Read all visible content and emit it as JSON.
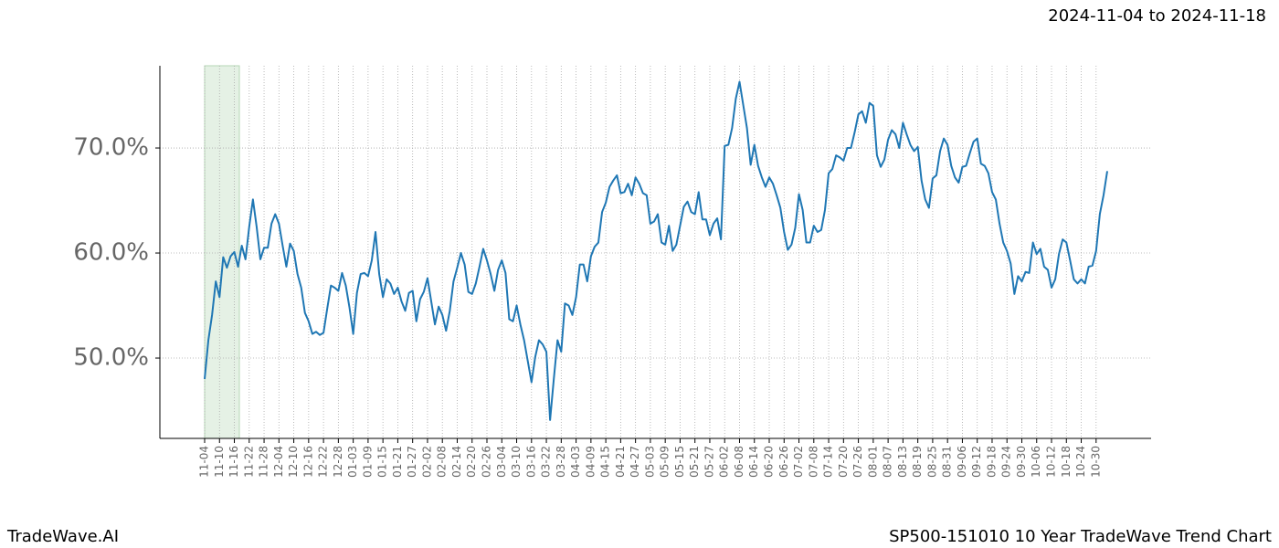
{
  "chart_data": {
    "type": "line",
    "title": "2024-11-04 to 2024-11-18",
    "footer_left": "TradeWave.AI",
    "footer_right": "SP500-151010 10 Year TradeWave Trend Chart",
    "color": "#1f77b4",
    "grid": true,
    "ylim": [
      42.35,
      77.83
    ],
    "yticks": [
      {
        "value": 50,
        "label": "50.0%"
      },
      {
        "value": 60,
        "label": "60.0%"
      },
      {
        "value": 70,
        "label": "70.0%"
      }
    ],
    "categories": [
      "11-04",
      null,
      null,
      null,
      "11-10",
      null,
      null,
      null,
      "11-16",
      null,
      null,
      null,
      "11-22",
      null,
      null,
      null,
      "11-28",
      null,
      null,
      null,
      "12-04",
      null,
      null,
      null,
      "12-10",
      null,
      null,
      null,
      "12-16",
      null,
      null,
      null,
      "12-22",
      null,
      null,
      null,
      "12-28",
      null,
      null,
      null,
      "01-03",
      null,
      null,
      null,
      "01-09",
      null,
      null,
      null,
      "01-15",
      null,
      null,
      null,
      "01-21",
      null,
      null,
      null,
      "01-27",
      null,
      null,
      null,
      "02-02",
      null,
      null,
      null,
      "02-08",
      null,
      null,
      null,
      "02-14",
      null,
      null,
      null,
      "02-20",
      null,
      null,
      null,
      "02-26",
      null,
      null,
      null,
      "03-04",
      null,
      null,
      null,
      "03-10",
      null,
      null,
      null,
      "03-16",
      null,
      null,
      null,
      "03-22",
      null,
      null,
      null,
      "03-28",
      null,
      null,
      null,
      "04-03",
      null,
      null,
      null,
      "04-09",
      null,
      null,
      null,
      "04-15",
      null,
      null,
      null,
      "04-21",
      null,
      null,
      null,
      "04-27",
      null,
      null,
      null,
      "05-03",
      null,
      null,
      null,
      "05-09",
      null,
      null,
      null,
      "05-15",
      null,
      null,
      null,
      "05-21",
      null,
      null,
      null,
      "05-27",
      null,
      null,
      null,
      "06-02",
      null,
      null,
      null,
      "06-08",
      null,
      null,
      null,
      "06-14",
      null,
      null,
      null,
      "06-20",
      null,
      null,
      null,
      "06-26",
      null,
      null,
      null,
      "07-02",
      null,
      null,
      null,
      "07-08",
      null,
      null,
      null,
      "07-14",
      null,
      null,
      null,
      "07-20",
      null,
      null,
      null,
      "07-26",
      null,
      null,
      null,
      "08-01",
      null,
      null,
      null,
      "08-07",
      null,
      null,
      null,
      "08-13",
      null,
      null,
      null,
      "08-19",
      null,
      null,
      null,
      "08-25",
      null,
      null,
      null,
      "08-31",
      null,
      null,
      null,
      "09-06",
      null,
      null,
      null,
      "09-12",
      null,
      null,
      null,
      "09-18",
      null,
      null,
      null,
      "09-24",
      null,
      null,
      null,
      "09-30",
      null,
      null,
      null,
      "10-06",
      null,
      null,
      null,
      "10-12",
      null,
      null,
      null,
      "10-18",
      null,
      null,
      null,
      "10-24",
      null,
      null,
      null,
      "10-30",
      null,
      null,
      null
    ],
    "values": [
      48.0,
      51.7,
      54.1,
      57.3,
      55.8,
      59.6,
      58.6,
      59.7,
      60.1,
      58.7,
      60.7,
      59.4,
      62.5,
      65.1,
      62.5,
      59.4,
      60.5,
      60.5,
      62.8,
      63.7,
      62.8,
      60.7,
      58.7,
      60.9,
      60.2,
      58.0,
      56.7,
      54.3,
      53.5,
      52.3,
      52.5,
      52.2,
      52.4,
      54.7,
      56.9,
      56.7,
      56.4,
      58.1,
      56.9,
      54.8,
      52.3,
      56.2,
      58.0,
      58.1,
      57.8,
      59.3,
      62.0,
      58.0,
      55.8,
      57.5,
      57.1,
      56.1,
      56.7,
      55.4,
      54.5,
      56.2,
      56.4,
      53.5,
      55.6,
      56.3,
      57.6,
      55.4,
      53.2,
      54.9,
      54.1,
      52.6,
      54.5,
      57.3,
      58.6,
      60.0,
      58.9,
      56.3,
      56.1,
      57.1,
      58.7,
      60.4,
      59.3,
      58.0,
      56.4,
      58.4,
      59.3,
      58.1,
      53.7,
      53.5,
      55.0,
      53.2,
      51.7,
      49.7,
      47.7,
      50.1,
      51.7,
      51.3,
      50.6,
      44.1,
      48.0,
      51.7,
      50.6,
      55.2,
      55.0,
      54.1,
      55.8,
      58.9,
      58.9,
      57.3,
      59.7,
      60.6,
      61.0,
      63.9,
      64.8,
      66.3,
      66.9,
      67.4,
      65.7,
      65.8,
      66.6,
      65.5,
      67.2,
      66.6,
      65.7,
      65.5,
      62.8,
      63.0,
      63.7,
      61.0,
      60.8,
      62.6,
      60.2,
      60.8,
      62.6,
      64.4,
      64.9,
      63.9,
      63.7,
      65.8,
      63.2,
      63.2,
      61.7,
      62.8,
      63.3,
      61.3,
      70.2,
      70.3,
      71.9,
      74.7,
      76.3,
      74.1,
      71.9,
      68.4,
      70.3,
      68.3,
      67.2,
      66.3,
      67.2,
      66.6,
      65.5,
      64.3,
      62.0,
      60.3,
      60.8,
      62.4,
      65.6,
      64.1,
      61.0,
      61.0,
      62.6,
      62.0,
      62.2,
      64.1,
      67.6,
      68.0,
      69.3,
      69.1,
      68.8,
      70.0,
      70.0,
      71.5,
      73.2,
      73.5,
      72.4,
      74.3,
      74.0,
      69.3,
      68.2,
      68.9,
      70.8,
      71.7,
      71.3,
      70.0,
      72.4,
      71.3,
      70.3,
      69.7,
      70.1,
      66.9,
      65.1,
      64.3,
      67.1,
      67.4,
      69.7,
      70.9,
      70.3,
      68.3,
      67.2,
      66.7,
      68.2,
      68.3,
      69.5,
      70.6,
      70.9,
      68.5,
      68.3,
      67.6,
      65.8,
      65.1,
      62.8,
      61.0,
      60.2,
      59.0,
      56.1,
      57.8,
      57.3,
      58.2,
      58.1,
      61.0,
      59.9,
      60.4,
      58.7,
      58.4,
      56.7,
      57.5,
      59.9,
      61.3,
      61.0,
      59.3,
      57.5,
      57.1,
      57.5,
      57.1,
      58.7,
      58.8,
      60.2,
      63.7,
      65.5,
      67.8
    ]
  }
}
